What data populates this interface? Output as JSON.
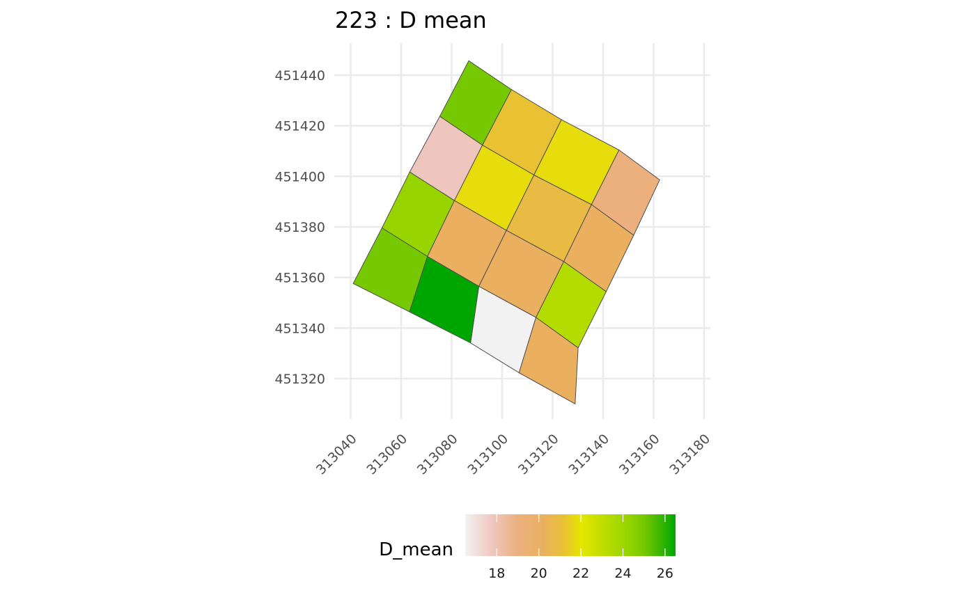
{
  "chart_data": {
    "type": "heatmap",
    "title": "223 : D mean",
    "xlabel": "",
    "ylabel": "",
    "x_ticks": [
      313040,
      313060,
      313080,
      313100,
      313120,
      313140,
      313160,
      313180
    ],
    "y_ticks": [
      451320,
      451340,
      451360,
      451380,
      451400,
      451420,
      451440
    ],
    "xlim": [
      313040,
      313180
    ],
    "ylim": [
      451320,
      451440
    ],
    "grid": true,
    "cells": [
      {
        "id": "r0c0",
        "D_mean": 25.0,
        "corners": [
          [
            313086.8,
            451445.7
          ],
          [
            313103.7,
            451434.3
          ],
          [
            313092.2,
            451412.3
          ],
          [
            313075.3,
            451423.7
          ]
        ]
      },
      {
        "id": "r0c1",
        "D_mean": 21.2,
        "corners": [
          [
            313103.7,
            451434.3
          ],
          [
            313123.5,
            451422.4
          ],
          [
            313112.6,
            451400.5
          ],
          [
            313092.2,
            451412.3
          ]
        ]
      },
      {
        "id": "r0c2",
        "D_mean": 21.8,
        "corners": [
          [
            313123.5,
            451422.4
          ],
          [
            313146.3,
            451410.4
          ],
          [
            313135.4,
            451388.8
          ],
          [
            313112.6,
            451400.5
          ]
        ]
      },
      {
        "id": "r0c3",
        "D_mean": 19.0,
        "corners": [
          [
            313146.3,
            451410.4
          ],
          [
            313162.4,
            451398.6
          ],
          [
            313152.1,
            451376.7
          ],
          [
            313135.4,
            451388.8
          ]
        ]
      },
      {
        "id": "r1c0",
        "D_mean": 17.8,
        "corners": [
          [
            313075.3,
            451423.7
          ],
          [
            313092.2,
            451412.3
          ],
          [
            313081.1,
            451390.4
          ],
          [
            313063.4,
            451401.7
          ]
        ]
      },
      {
        "id": "r1c1",
        "D_mean": 21.8,
        "corners": [
          [
            313092.2,
            451412.3
          ],
          [
            313112.6,
            451400.5
          ],
          [
            313101.7,
            451378.6
          ],
          [
            313081.1,
            451390.4
          ]
        ]
      },
      {
        "id": "r1c2",
        "D_mean": 20.8,
        "corners": [
          [
            313112.6,
            451400.5
          ],
          [
            313135.4,
            451388.8
          ],
          [
            313124.4,
            451366.3
          ],
          [
            313101.7,
            451378.6
          ]
        ]
      },
      {
        "id": "r1c3",
        "D_mean": 20.2,
        "corners": [
          [
            313135.4,
            451388.8
          ],
          [
            313152.1,
            451376.7
          ],
          [
            313141.2,
            451354.4
          ],
          [
            313124.4,
            451366.3
          ]
        ]
      },
      {
        "id": "r2c0",
        "D_mean": 24.2,
        "corners": [
          [
            313063.4,
            451401.7
          ],
          [
            313081.1,
            451390.4
          ],
          [
            313070.4,
            451368.3
          ],
          [
            313052.4,
            451379.6
          ]
        ]
      },
      {
        "id": "r2c1",
        "D_mean": 20.2,
        "corners": [
          [
            313081.1,
            451390.4
          ],
          [
            313101.7,
            451378.6
          ],
          [
            313090.8,
            451356.5
          ],
          [
            313070.4,
            451368.3
          ]
        ]
      },
      {
        "id": "r2c2",
        "D_mean": 20.2,
        "corners": [
          [
            313101.7,
            451378.6
          ],
          [
            313124.4,
            451366.3
          ],
          [
            313113.4,
            451344.2
          ],
          [
            313090.8,
            451356.5
          ]
        ]
      },
      {
        "id": "r2c3",
        "D_mean": 23.3,
        "corners": [
          [
            313124.4,
            451366.3
          ],
          [
            313141.2,
            451354.4
          ],
          [
            313130.1,
            451332.2
          ],
          [
            313113.4,
            451344.2
          ]
        ]
      },
      {
        "id": "r3c0",
        "D_mean": 25.0,
        "corners": [
          [
            313052.4,
            451379.6
          ],
          [
            313070.4,
            451368.3
          ],
          [
            313063.3,
            451346.4
          ],
          [
            313041.0,
            451357.6
          ]
        ]
      },
      {
        "id": "r3c1",
        "D_mean": 26.5,
        "corners": [
          [
            313070.4,
            451368.3
          ],
          [
            313090.8,
            451356.5
          ],
          [
            313087.5,
            451334.1
          ],
          [
            313063.3,
            451346.4
          ]
        ]
      },
      {
        "id": "r3c2",
        "D_mean": 16.5,
        "corners": [
          [
            313090.8,
            451356.5
          ],
          [
            313113.4,
            451344.2
          ],
          [
            313106.7,
            451322.3
          ],
          [
            313087.5,
            451334.1
          ]
        ]
      },
      {
        "id": "r3c3",
        "D_mean": 20.2,
        "corners": [
          [
            313113.4,
            451344.2
          ],
          [
            313130.1,
            451332.2
          ],
          [
            313128.9,
            451310.0
          ],
          [
            313106.7,
            451322.3
          ]
        ]
      }
    ],
    "legend": {
      "title": "D_mean",
      "placement": "bottom",
      "range": [
        16.5,
        26.5
      ],
      "ticks": [
        18,
        20,
        22,
        24,
        26
      ],
      "color_stops": [
        {
          "value": 16.5,
          "color": "#f2f2f2"
        },
        {
          "value": 17.8,
          "color": "#efc6be"
        },
        {
          "value": 19.0,
          "color": "#ebb07e"
        },
        {
          "value": 20.2,
          "color": "#eab060"
        },
        {
          "value": 21.2,
          "color": "#e9c233"
        },
        {
          "value": 22.0,
          "color": "#e6e600"
        },
        {
          "value": 23.3,
          "color": "#b5dc00"
        },
        {
          "value": 24.2,
          "color": "#98d400"
        },
        {
          "value": 25.0,
          "color": "#76c800"
        },
        {
          "value": 26.5,
          "color": "#00a600"
        }
      ]
    }
  },
  "colors": {
    "grid": "#ebebeb",
    "cell_border": "#4d4d4d",
    "background": "#ffffff"
  }
}
